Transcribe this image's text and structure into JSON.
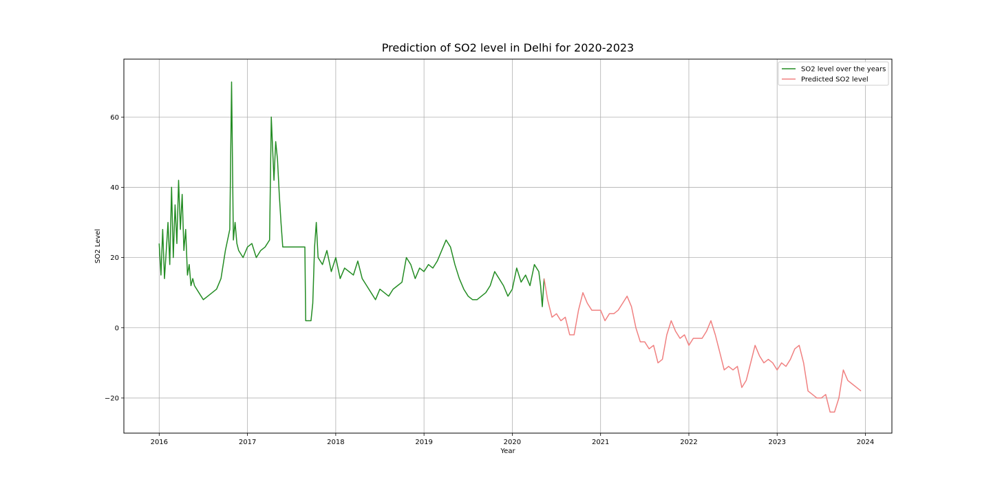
{
  "chart_data": {
    "type": "line",
    "title": "Prediction of SO2 level in Delhi for 2020-2023",
    "xlabel": "Year",
    "ylabel": "SO2 Level",
    "xlim": [
      2015.6,
      2024.3
    ],
    "ylim": [
      -30,
      76.5
    ],
    "x_ticks": [
      2016,
      2017,
      2018,
      2019,
      2020,
      2021,
      2022,
      2023,
      2024
    ],
    "x_tick_labels": [
      "2016",
      "2017",
      "2018",
      "2019",
      "2020",
      "2021",
      "2022",
      "2023",
      "2024"
    ],
    "y_ticks": [
      -20,
      0,
      20,
      40,
      60
    ],
    "y_tick_labels": [
      "−20",
      "0",
      "20",
      "40",
      "60"
    ],
    "grid": true,
    "legend_position": "top-right",
    "series": [
      {
        "name": "SO2 level over the years",
        "color": "#228b22",
        "x": [
          2016.0,
          2016.02,
          2016.04,
          2016.06,
          2016.08,
          2016.1,
          2016.12,
          2016.14,
          2016.16,
          2016.18,
          2016.2,
          2016.22,
          2016.24,
          2016.26,
          2016.28,
          2016.3,
          2016.32,
          2016.34,
          2016.36,
          2016.38,
          2016.4,
          2016.45,
          2016.5,
          2016.55,
          2016.6,
          2016.65,
          2016.7,
          2016.75,
          2016.8,
          2016.82,
          2016.84,
          2016.86,
          2016.88,
          2016.9,
          2016.95,
          2017.0,
          2017.05,
          2017.1,
          2017.15,
          2017.2,
          2017.25,
          2017.27,
          2017.3,
          2017.32,
          2017.34,
          2017.36,
          2017.38,
          2017.4,
          2017.42,
          2017.45,
          2017.5,
          2017.55,
          2017.6,
          2017.65,
          2017.66,
          2017.7,
          2017.72,
          2017.74,
          2017.76,
          2017.78,
          2017.8,
          2017.85,
          2017.9,
          2017.95,
          2018.0,
          2018.05,
          2018.1,
          2018.15,
          2018.2,
          2018.25,
          2018.3,
          2018.35,
          2018.4,
          2018.45,
          2018.5,
          2018.55,
          2018.6,
          2018.65,
          2018.7,
          2018.75,
          2018.8,
          2018.85,
          2018.9,
          2018.95,
          2019.0,
          2019.05,
          2019.1,
          2019.15,
          2019.2,
          2019.25,
          2019.3,
          2019.35,
          2019.4,
          2019.45,
          2019.5,
          2019.55,
          2019.6,
          2019.65,
          2019.7,
          2019.75,
          2019.8,
          2019.85,
          2019.9,
          2019.95,
          2020.0,
          2020.05,
          2020.1,
          2020.15,
          2020.2,
          2020.25,
          2020.3,
          2020.32,
          2020.34,
          2020.36
        ],
        "y": [
          24,
          15,
          28,
          14,
          22,
          30,
          18,
          40,
          20,
          35,
          24,
          42,
          28,
          38,
          22,
          28,
          15,
          18,
          12,
          14,
          12,
          10,
          8,
          9,
          10,
          11,
          14,
          22,
          28,
          70,
          25,
          30,
          24,
          22,
          20,
          23,
          24,
          20,
          22,
          23,
          25,
          60,
          42,
          53,
          48,
          38,
          30,
          23,
          23,
          23,
          23,
          23,
          23,
          23,
          2,
          2,
          2,
          7,
          23,
          30,
          20,
          18,
          22,
          16,
          20,
          14,
          17,
          16,
          15,
          19,
          14,
          12,
          10,
          8,
          11,
          10,
          9,
          11,
          12,
          13,
          20,
          18,
          14,
          17,
          16,
          18,
          17,
          19,
          22,
          25,
          23,
          18,
          14,
          11,
          9,
          8,
          8,
          9,
          10,
          12,
          16,
          14,
          12,
          9,
          11,
          17,
          13,
          15,
          12,
          18,
          16,
          12,
          6,
          14
        ]
      },
      {
        "name": "Predicted SO2 level",
        "color": "#f08080",
        "x": [
          2020.36,
          2020.4,
          2020.45,
          2020.5,
          2020.55,
          2020.6,
          2020.65,
          2020.7,
          2020.75,
          2020.8,
          2020.85,
          2020.9,
          2020.95,
          2021.0,
          2021.05,
          2021.1,
          2021.15,
          2021.2,
          2021.25,
          2021.3,
          2021.35,
          2021.4,
          2021.45,
          2021.5,
          2021.55,
          2021.6,
          2021.65,
          2021.7,
          2021.75,
          2021.8,
          2021.85,
          2021.9,
          2021.95,
          2022.0,
          2022.05,
          2022.1,
          2022.15,
          2022.2,
          2022.25,
          2022.3,
          2022.35,
          2022.4,
          2022.45,
          2022.5,
          2022.55,
          2022.6,
          2022.65,
          2022.7,
          2022.75,
          2022.8,
          2022.85,
          2022.9,
          2022.95,
          2023.0,
          2023.05,
          2023.1,
          2023.15,
          2023.2,
          2023.25,
          2023.3,
          2023.35,
          2023.4,
          2023.45,
          2023.5,
          2023.55,
          2023.6,
          2023.65,
          2023.7,
          2023.75,
          2023.8,
          2023.85,
          2023.9,
          2023.95
        ],
        "y": [
          14,
          8,
          3,
          4,
          2,
          3,
          -2,
          -2,
          5,
          10,
          7,
          5,
          5,
          5,
          2,
          4,
          4,
          5,
          7,
          9,
          6,
          0,
          -4,
          -4,
          -6,
          -5,
          -10,
          -9,
          -2,
          2,
          -1,
          -3,
          -2,
          -5,
          -3,
          -3,
          -3,
          -1,
          2,
          -2,
          -7,
          -12,
          -11,
          -12,
          -11,
          -17,
          -15,
          -10,
          -5,
          -8,
          -10,
          -9,
          -10,
          -12,
          -10,
          -11,
          -9,
          -6,
          -5,
          -10,
          -18,
          -19,
          -20,
          -20,
          -19,
          -24,
          -24,
          -20,
          -12,
          -15,
          -16,
          -17,
          -18
        ]
      }
    ]
  }
}
